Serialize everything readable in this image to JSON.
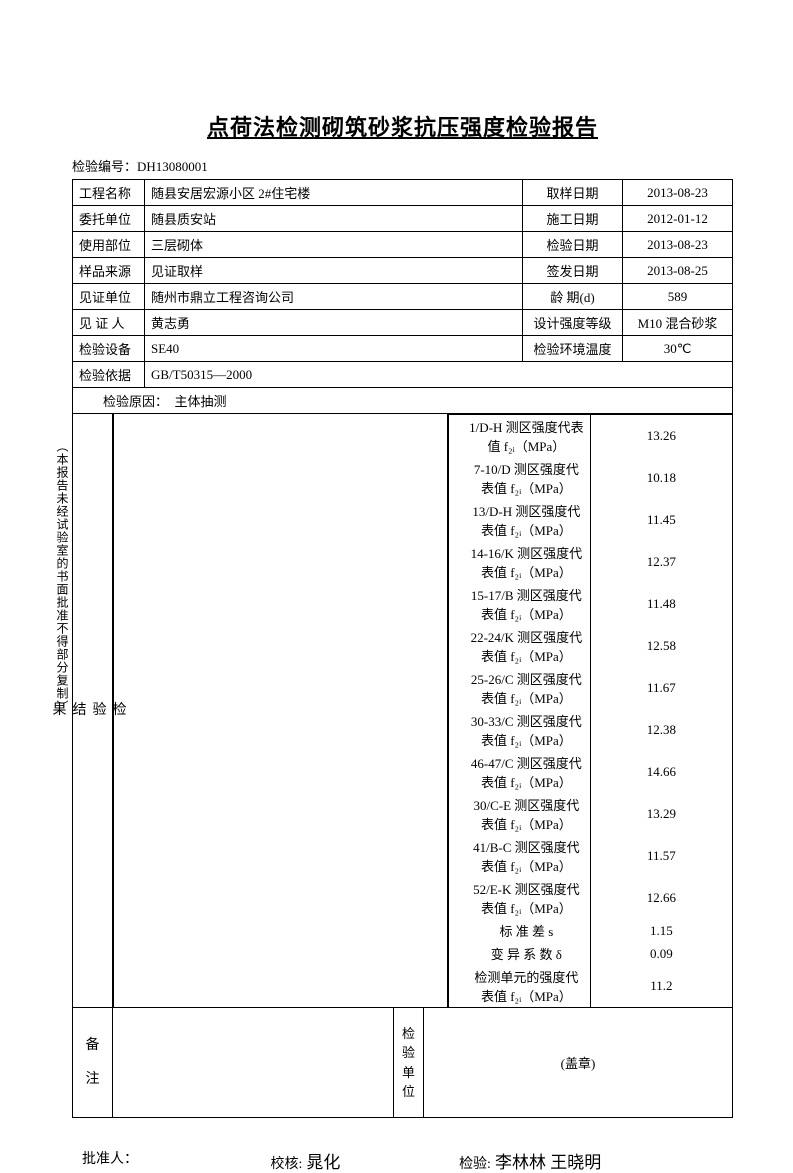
{
  "title": "点荷法检测砌筑砂浆抗压强度检验报告",
  "serial_label": "检验编号：",
  "serial_value": "DH13080001",
  "info_rows": [
    {
      "l1": "工程名称",
      "v1": "随县安居宏源小区 2#住宅楼",
      "l2": "取样日期",
      "v2": "2013-08-23"
    },
    {
      "l1": "委托单位",
      "v1": "随县质安站",
      "l2": "施工日期",
      "v2": "2012-01-12"
    },
    {
      "l1": "使用部位",
      "v1": "三层砌体",
      "l2": "检验日期",
      "v2": "2013-08-23"
    },
    {
      "l1": "样品来源",
      "v1": "见证取样",
      "l2": "签发日期",
      "v2": "2013-08-25"
    },
    {
      "l1": "见证单位",
      "v1": "随州市鼎立工程咨询公司",
      "l2": "龄 期(d)",
      "v2": "589"
    },
    {
      "l1": "见 证 人",
      "v1": "黄志勇",
      "l2": "设计强度等级",
      "v2": "M10 混合砂浆"
    },
    {
      "l1": "检验设备",
      "v1": "SE40",
      "l2": "检验环境温度",
      "v2": "30℃"
    }
  ],
  "basis_label": "检验依据",
  "basis_value": "GB/T50315—2000",
  "reason_label": "检验原因：",
  "reason_value": "主体抽测",
  "vnote": "（本报告未经试验室的书面批准不得部分复制）",
  "results_label": "检验结果",
  "results": [
    {
      "param": "1/D-H 测区强度代表值 f₂ᵢ（MPa）",
      "value": "13.26"
    },
    {
      "param": "7-10/D 测区强度代表值 f₂ᵢ（MPa）",
      "value": "10.18"
    },
    {
      "param": "13/D-H 测区强度代表值 f₂ᵢ（MPa）",
      "value": "11.45"
    },
    {
      "param": "14-16/K 测区强度代表值 f₂ᵢ（MPa）",
      "value": "12.37"
    },
    {
      "param": "15-17/B 测区强度代表值 f₂ᵢ（MPa）",
      "value": "11.48"
    },
    {
      "param": "22-24/K 测区强度代表值 f₂ᵢ（MPa）",
      "value": "12.58"
    },
    {
      "param": "25-26/C 测区强度代表值 f₂ᵢ（MPa）",
      "value": "11.67"
    },
    {
      "param": "30-33/C 测区强度代表值 f₂ᵢ（MPa）",
      "value": "12.38"
    },
    {
      "param": "46-47/C 测区强度代表值 f₂ᵢ（MPa）",
      "value": "14.66"
    },
    {
      "param": "30/C-E 测区强度代表值 f₂ᵢ（MPa）",
      "value": "13.29"
    },
    {
      "param": "41/B-C 测区强度代表值 f₂ᵢ（MPa）",
      "value": "11.57"
    },
    {
      "param": "52/E-K 测区强度代表值 f₂ᵢ（MPa）",
      "value": "12.66"
    },
    {
      "param": "标 准 差 s",
      "value": "1.15"
    },
    {
      "param": "变 异 系 数 δ",
      "value": "0.09"
    },
    {
      "param": "检测单元的强度代表值 f₂ᵢ（MPa）",
      "value": "11.2"
    }
  ],
  "remarks_label": "备注",
  "unit_label": "检验单位",
  "seal_text": "(盖章)",
  "sig": {
    "approve_label": "批准人：",
    "check_label": "校核:",
    "check_name": "晁化",
    "inspect_label": "检验:",
    "inspect_name": "李林林 王晓明"
  }
}
